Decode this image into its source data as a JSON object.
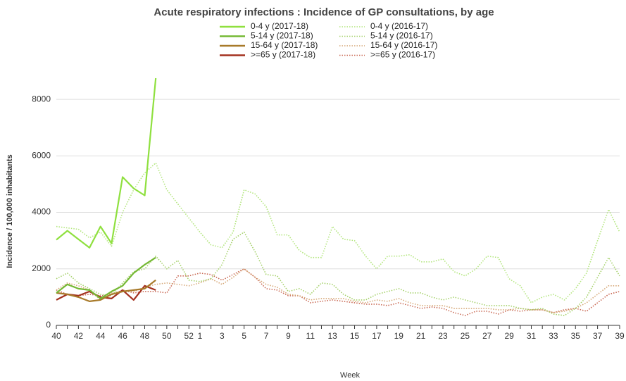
{
  "chart_data": {
    "type": "line",
    "title": "Acute respiratory infections : Incidence of GP consultations, by age",
    "x_label": "Week",
    "y_label": "Incidence / 100,000 inhabitants",
    "categories": [
      40,
      null,
      42,
      null,
      44,
      null,
      46,
      null,
      48,
      null,
      50,
      null,
      52,
      1,
      null,
      3,
      null,
      5,
      null,
      7,
      null,
      9,
      null,
      11,
      null,
      13,
      null,
      15,
      null,
      17,
      null,
      19,
      null,
      21,
      null,
      23,
      null,
      25,
      null,
      27,
      null,
      29,
      null,
      31,
      null,
      33,
      null,
      35,
      null,
      37,
      null,
      39
    ],
    "ylim": [
      0,
      9000
    ],
    "yticks": [
      0,
      2000,
      4000,
      6000,
      8000
    ],
    "grid": true,
    "legend": "top",
    "series": [
      {
        "name": "0-4 y (2017-18)",
        "color": "#8fe03f",
        "linestyle": "solid",
        "values": [
          3030,
          3350,
          3050,
          2750,
          3500,
          2900,
          5250,
          4850,
          4600,
          8750,
          null,
          null,
          null,
          null,
          null,
          null,
          null,
          null,
          null,
          null,
          null,
          null,
          null,
          null,
          null,
          null,
          null,
          null,
          null,
          null,
          null,
          null,
          null,
          null,
          null,
          null,
          null,
          null,
          null,
          null,
          null,
          null,
          null,
          null,
          null,
          null,
          null,
          null,
          null,
          null,
          null,
          null
        ]
      },
      {
        "name": "5-14 y (2017-18)",
        "color": "#74b833",
        "linestyle": "solid",
        "values": [
          1150,
          1450,
          1300,
          1250,
          950,
          1200,
          1400,
          1850,
          2150,
          2400,
          null,
          null,
          null,
          null,
          null,
          null,
          null,
          null,
          null,
          null,
          null,
          null,
          null,
          null,
          null,
          null,
          null,
          null,
          null,
          null,
          null,
          null,
          null,
          null,
          null,
          null,
          null,
          null,
          null,
          null,
          null,
          null,
          null,
          null,
          null,
          null,
          null,
          null,
          null,
          null,
          null,
          null
        ]
      },
      {
        "name": "15-64 y (2017-18)",
        "color": "#a87a2a",
        "linestyle": "solid",
        "values": [
          1150,
          1100,
          1000,
          850,
          900,
          1100,
          1200,
          1250,
          1300,
          1600,
          null,
          null,
          null,
          null,
          null,
          null,
          null,
          null,
          null,
          null,
          null,
          null,
          null,
          null,
          null,
          null,
          null,
          null,
          null,
          null,
          null,
          null,
          null,
          null,
          null,
          null,
          null,
          null,
          null,
          null,
          null,
          null,
          null,
          null,
          null,
          null,
          null,
          null,
          null,
          null,
          null,
          null
        ]
      },
      {
        "name": ">=65 y (2017-18)",
        "color": "#a3301e",
        "linestyle": "solid",
        "values": [
          900,
          1100,
          1050,
          1200,
          1000,
          950,
          1250,
          900,
          1400,
          1250,
          null,
          null,
          null,
          null,
          null,
          null,
          null,
          null,
          null,
          null,
          null,
          null,
          null,
          null,
          null,
          null,
          null,
          null,
          null,
          null,
          null,
          null,
          null,
          null,
          null,
          null,
          null,
          null,
          null,
          null,
          null,
          null,
          null,
          null,
          null,
          null,
          null,
          null,
          null,
          null,
          null,
          null
        ]
      },
      {
        "name": "0-4 y (2016-17)",
        "color": "#b3e67e",
        "linestyle": "dotted",
        "values": [
          3500,
          3450,
          3400,
          3100,
          3300,
          2800,
          4000,
          4800,
          5400,
          5750,
          4800,
          4300,
          3800,
          3300,
          2850,
          2750,
          3300,
          4800,
          4650,
          4200,
          3200,
          3200,
          2650,
          2400,
          2400,
          3500,
          3050,
          3000,
          2450,
          2000,
          2450,
          2450,
          2500,
          2250,
          2250,
          2350,
          1900,
          1750,
          2000,
          2450,
          2400,
          1650,
          1400,
          800,
          1000,
          1100,
          900,
          1300,
          1850,
          3000,
          4100,
          3300
        ]
      },
      {
        "name": "5-14 y (2016-17)",
        "color": "#a5d16a",
        "linestyle": "dotted",
        "values": [
          1650,
          1850,
          1500,
          1300,
          1100,
          1050,
          1500,
          1900,
          2000,
          2450,
          2000,
          2300,
          1600,
          1550,
          1650,
          2150,
          3050,
          3300,
          2600,
          1800,
          1750,
          1200,
          1300,
          1100,
          1500,
          1450,
          1100,
          900,
          900,
          1100,
          1200,
          1300,
          1150,
          1150,
          1000,
          900,
          1000,
          900,
          800,
          700,
          700,
          700,
          600,
          550,
          600,
          400,
          350,
          600,
          1000,
          1700,
          2400,
          1750
        ]
      },
      {
        "name": "15-64 y (2016-17)",
        "color": "#d6a878",
        "linestyle": "dotted",
        "values": [
          1250,
          1500,
          1400,
          1250,
          900,
          1150,
          1200,
          1200,
          1350,
          1450,
          1500,
          1450,
          1400,
          1500,
          1650,
          1450,
          1700,
          2000,
          1700,
          1450,
          1350,
          1100,
          1050,
          900,
          950,
          950,
          950,
          850,
          800,
          900,
          850,
          950,
          800,
          700,
          700,
          700,
          600,
          600,
          600,
          600,
          550,
          550,
          600,
          550,
          550,
          450,
          500,
          600,
          800,
          1100,
          1400,
          1400
        ]
      },
      {
        "name": ">=65 y (2016-17)",
        "color": "#c96a55",
        "linestyle": "dotted",
        "values": [
          1250,
          1100,
          1050,
          1100,
          1050,
          1100,
          1250,
          1150,
          1200,
          1200,
          1150,
          1750,
          1750,
          1850,
          1800,
          1600,
          1800,
          2000,
          1700,
          1300,
          1250,
          1050,
          1050,
          800,
          850,
          900,
          850,
          800,
          750,
          750,
          700,
          800,
          700,
          600,
          650,
          600,
          450,
          350,
          500,
          500,
          400,
          550,
          500,
          550,
          550,
          450,
          550,
          600,
          500,
          800,
          1100,
          1200
        ]
      }
    ]
  }
}
